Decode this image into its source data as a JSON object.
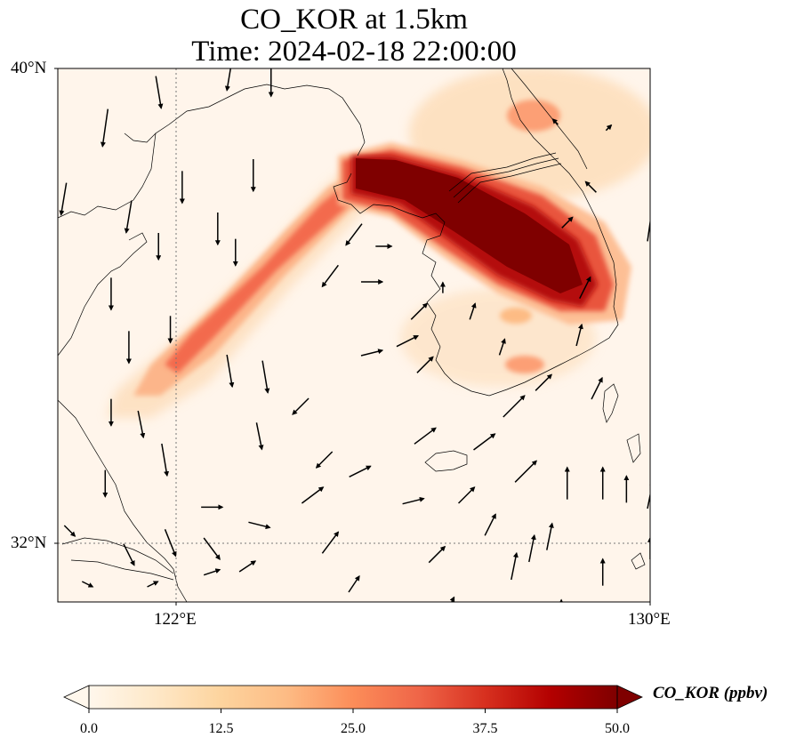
{
  "title": {
    "line1": "CO_KOR at 1.5km",
    "line2": "Time: 2024-02-18 22:00:00"
  },
  "axes": {
    "lat_labels": [
      "40°N",
      "32°N"
    ],
    "lon_labels": [
      "122°E",
      "130°E"
    ],
    "lon_range": [
      120,
      130
    ],
    "lat_range": [
      31,
      40
    ],
    "gridlines": {
      "lon": [
        122
      ],
      "lat": [
        32
      ],
      "style": "dotted"
    }
  },
  "colorbar": {
    "label": "CO_KOR (ppbv)",
    "ticks": [
      "0.0",
      "12.5",
      "25.0",
      "37.5",
      "50.0"
    ],
    "range": [
      0,
      50
    ],
    "extend": "both",
    "colormap": "OrRd",
    "colors": [
      "#fff7ec",
      "#fee8c8",
      "#fdd49e",
      "#fdbb84",
      "#fc8d59",
      "#ef6548",
      "#d7301f",
      "#b30000",
      "#7f0000"
    ]
  },
  "chart_data": {
    "type": "heatmap",
    "variable": "CO_KOR",
    "units": "ppbv",
    "level": "1.5km",
    "time": "2024-02-18 22:00:00",
    "plumes": [
      {
        "path": [
          [
            125.1,
            37.4
          ],
          [
            124.2,
            36.5
          ],
          [
            123.2,
            35.5
          ],
          [
            122.1,
            34.6
          ],
          [
            121.4,
            34.1
          ]
        ],
        "peak": 32
      },
      {
        "path": [
          [
            125.4,
            37.6
          ],
          [
            126.5,
            37.2
          ],
          [
            127.5,
            36.8
          ],
          [
            128.5,
            36.0
          ],
          [
            129.0,
            35.4
          ]
        ],
        "peak": 55
      }
    ],
    "wind_vectors": [
      {
        "lon": 120.1,
        "lat": 37.8,
        "u": -1,
        "v": -6
      },
      {
        "lon": 120.8,
        "lat": 39.0,
        "u": -1,
        "v": -7
      },
      {
        "lon": 121.7,
        "lat": 39.6,
        "u": 1,
        "v": -6
      },
      {
        "lon": 122.1,
        "lat": 38.0,
        "u": 0,
        "v": -6
      },
      {
        "lon": 121.2,
        "lat": 37.5,
        "u": -1,
        "v": -6
      },
      {
        "lon": 121.7,
        "lat": 37.0,
        "u": 0,
        "v": -5
      },
      {
        "lon": 122.7,
        "lat": 37.3,
        "u": 0,
        "v": -6
      },
      {
        "lon": 123.0,
        "lat": 36.9,
        "u": 0,
        "v": -5
      },
      {
        "lon": 123.3,
        "lat": 38.2,
        "u": 0,
        "v": -6
      },
      {
        "lon": 123.6,
        "lat": 39.8,
        "u": 0,
        "v": -6
      },
      {
        "lon": 122.9,
        "lat": 39.9,
        "u": -1,
        "v": -6
      },
      {
        "lon": 120.9,
        "lat": 36.2,
        "u": 0,
        "v": -6
      },
      {
        "lon": 121.2,
        "lat": 35.3,
        "u": 0,
        "v": -6
      },
      {
        "lon": 121.9,
        "lat": 35.6,
        "u": 0,
        "v": -5
      },
      {
        "lon": 120.9,
        "lat": 34.2,
        "u": 0,
        "v": -5
      },
      {
        "lon": 121.4,
        "lat": 34.0,
        "u": 1,
        "v": -5
      },
      {
        "lon": 122.9,
        "lat": 34.9,
        "u": 1,
        "v": -6
      },
      {
        "lon": 123.5,
        "lat": 34.8,
        "u": 1,
        "v": -6
      },
      {
        "lon": 123.4,
        "lat": 33.8,
        "u": 1,
        "v": -5
      },
      {
        "lon": 121.8,
        "lat": 33.4,
        "u": 1,
        "v": -6
      },
      {
        "lon": 120.8,
        "lat": 33.0,
        "u": 0,
        "v": -5
      },
      {
        "lon": 121.9,
        "lat": 32.0,
        "u": 2,
        "v": -5
      },
      {
        "lon": 122.6,
        "lat": 31.9,
        "u": 3,
        "v": -4
      },
      {
        "lon": 120.2,
        "lat": 32.2,
        "u": 2,
        "v": -2
      },
      {
        "lon": 122.6,
        "lat": 32.6,
        "u": 4,
        "v": 0
      },
      {
        "lon": 123.4,
        "lat": 32.3,
        "u": 4,
        "v": -1
      },
      {
        "lon": 121.2,
        "lat": 31.8,
        "u": 2,
        "v": -4
      },
      {
        "lon": 121.6,
        "lat": 31.3,
        "u": 2,
        "v": 1
      },
      {
        "lon": 120.5,
        "lat": 31.3,
        "u": 2,
        "v": -1
      },
      {
        "lon": 122.6,
        "lat": 31.5,
        "u": 3,
        "v": 1
      },
      {
        "lon": 122.2,
        "lat": 30.8,
        "u": 3,
        "v": 2
      },
      {
        "lon": 123.2,
        "lat": 31.6,
        "u": 3,
        "v": 2
      },
      {
        "lon": 124.1,
        "lat": 34.3,
        "u": -3,
        "v": -3
      },
      {
        "lon": 124.5,
        "lat": 33.4,
        "u": -3,
        "v": -3
      },
      {
        "lon": 124.6,
        "lat": 36.5,
        "u": -3,
        "v": -4
      },
      {
        "lon": 125.0,
        "lat": 37.2,
        "u": -3,
        "v": -4
      },
      {
        "lon": 125.5,
        "lat": 37.0,
        "u": 3,
        "v": 0
      },
      {
        "lon": 125.3,
        "lat": 36.4,
        "u": 4,
        "v": 0
      },
      {
        "lon": 125.3,
        "lat": 35.2,
        "u": 4,
        "v": 1
      },
      {
        "lon": 125.9,
        "lat": 35.4,
        "u": 4,
        "v": 2
      },
      {
        "lon": 125.1,
        "lat": 33.2,
        "u": 4,
        "v": 2
      },
      {
        "lon": 126.2,
        "lat": 33.8,
        "u": 4,
        "v": 3
      },
      {
        "lon": 126.0,
        "lat": 32.7,
        "u": 4,
        "v": 1
      },
      {
        "lon": 124.3,
        "lat": 32.8,
        "u": 4,
        "v": 3
      },
      {
        "lon": 124.6,
        "lat": 32.0,
        "u": 3,
        "v": 4
      },
      {
        "lon": 125.0,
        "lat": 31.3,
        "u": 2,
        "v": 3
      },
      {
        "lon": 126.9,
        "lat": 32.8,
        "u": 3,
        "v": 3
      },
      {
        "lon": 126.4,
        "lat": 31.8,
        "u": 3,
        "v": 3
      },
      {
        "lon": 126.6,
        "lat": 30.9,
        "u": 2,
        "v": 4
      },
      {
        "lon": 127.2,
        "lat": 33.7,
        "u": 4,
        "v": 3
      },
      {
        "lon": 127.7,
        "lat": 34.3,
        "u": 4,
        "v": 4
      },
      {
        "lon": 127.9,
        "lat": 33.2,
        "u": 4,
        "v": 4
      },
      {
        "lon": 127.3,
        "lat": 32.3,
        "u": 2,
        "v": 4
      },
      {
        "lon": 128.0,
        "lat": 31.9,
        "u": 1,
        "v": 5
      },
      {
        "lon": 127.7,
        "lat": 31.6,
        "u": 1,
        "v": 5
      },
      {
        "lon": 128.3,
        "lat": 32.1,
        "u": 1,
        "v": 5
      },
      {
        "lon": 128.2,
        "lat": 34.7,
        "u": 3,
        "v": 3
      },
      {
        "lon": 126.2,
        "lat": 35.0,
        "u": 3,
        "v": 3
      },
      {
        "lon": 126.1,
        "lat": 35.9,
        "u": 3,
        "v": 3
      },
      {
        "lon": 127.0,
        "lat": 35.9,
        "u": 1,
        "v": 3
      },
      {
        "lon": 127.5,
        "lat": 35.3,
        "u": 1,
        "v": 3
      },
      {
        "lon": 128.8,
        "lat": 35.5,
        "u": 1,
        "v": 4
      },
      {
        "lon": 128.9,
        "lat": 36.3,
        "u": 2,
        "v": 4
      },
      {
        "lon": 129.1,
        "lat": 34.6,
        "u": 2,
        "v": 4
      },
      {
        "lon": 128.6,
        "lat": 33.0,
        "u": 0,
        "v": 6
      },
      {
        "lon": 129.2,
        "lat": 33.0,
        "u": 0,
        "v": 6
      },
      {
        "lon": 129.6,
        "lat": 32.9,
        "u": 0,
        "v": 5
      },
      {
        "lon": 129.2,
        "lat": 31.5,
        "u": 0,
        "v": 5
      },
      {
        "lon": 128.5,
        "lat": 30.9,
        "u": 0,
        "v": 3
      },
      {
        "lon": 130.0,
        "lat": 32.8,
        "u": 1,
        "v": 5
      },
      {
        "lon": 130.0,
        "lat": 31.9,
        "u": 0,
        "v": 4
      },
      {
        "lon": 130.0,
        "lat": 37.4,
        "u": 1,
        "v": 7
      },
      {
        "lon": 128.6,
        "lat": 37.4,
        "u": 2,
        "v": 2
      },
      {
        "lon": 129.3,
        "lat": 39.0,
        "u": 1,
        "v": 1
      },
      {
        "lon": 129.0,
        "lat": 38.0,
        "u": -2,
        "v": 2
      },
      {
        "lon": 128.4,
        "lat": 39.1,
        "u": -1,
        "v": 1
      },
      {
        "lon": 126.5,
        "lat": 36.3,
        "u": 0,
        "v": 2
      }
    ]
  }
}
